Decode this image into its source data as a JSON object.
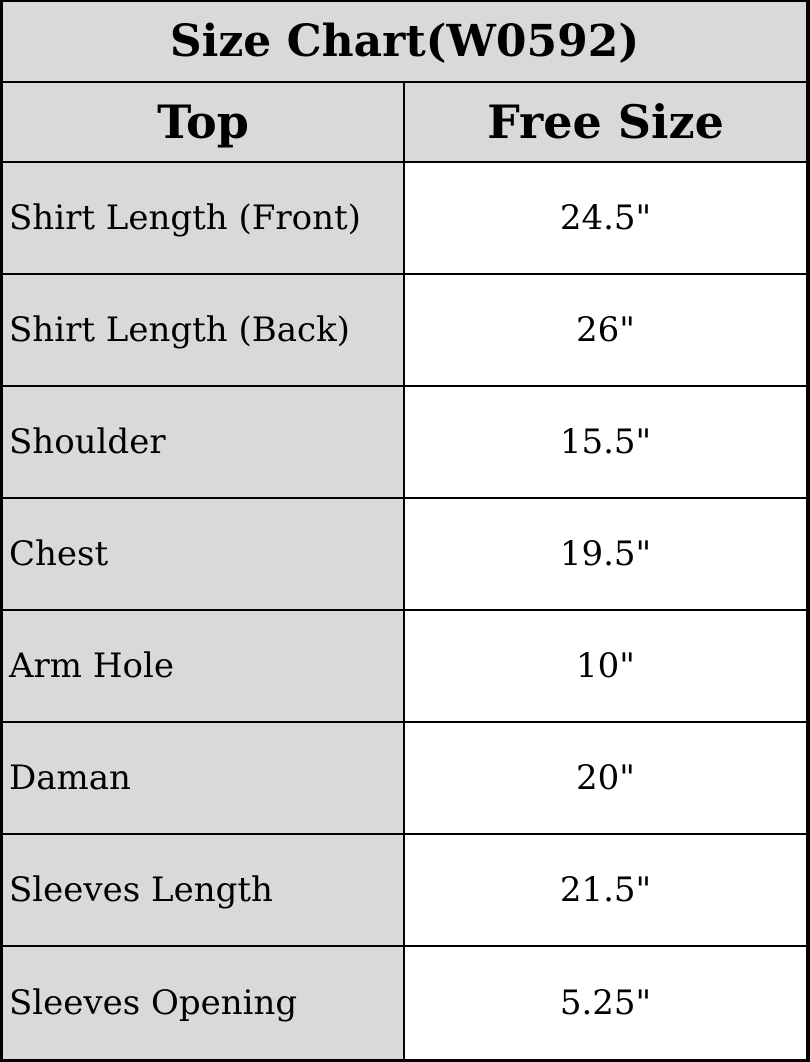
{
  "title": "Size Chart(W0592)",
  "header": {
    "col1": "Top",
    "col2": "Free Size"
  },
  "rows": [
    {
      "label": "Shirt Length (Front)",
      "value": "24.5\""
    },
    {
      "label": "Shirt Length (Back)",
      "value": "26\""
    },
    {
      "label": "Shoulder",
      "value": "15.5\""
    },
    {
      "label": "Chest",
      "value": "19.5\""
    },
    {
      "label": "Arm Hole",
      "value": "10\""
    },
    {
      "label": "Daman",
      "value": "20\""
    },
    {
      "label": "Sleeves Length",
      "value": "21.5\""
    },
    {
      "label": "Sleeves Opening",
      "value": "5.25\""
    }
  ],
  "colors": {
    "label_bg": "#d9d9d9",
    "value_bg": "#ffffff",
    "border": "#000000"
  }
}
